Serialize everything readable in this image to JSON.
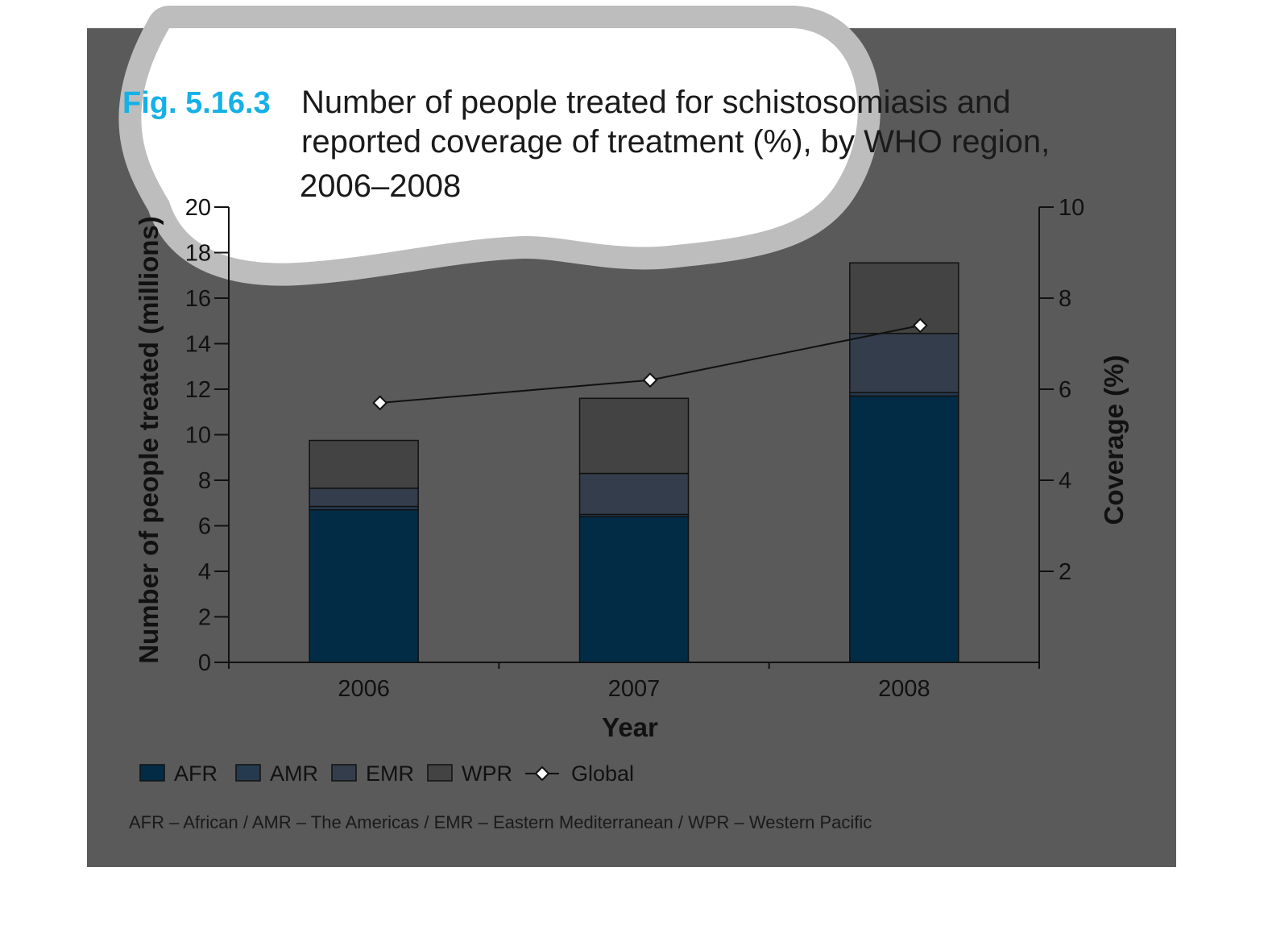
{
  "figure": {
    "label": "Fig. 5.16.3",
    "title_lines": [
      "Number of people treated for schistosomiasis and",
      "reported coverage of treatment (%), by WHO region,",
      "2006–2008"
    ],
    "footnote": "AFR – African / AMR – The Americas / EMR – Eastern Mediterranean / WPR – Western Pacific"
  },
  "colors": {
    "background": "#5a5a5a",
    "cloud": "#ffffff",
    "cloud_ring": "#bdbdbd",
    "afr": "#022c45",
    "amr": "#253a4f",
    "emr": "#333d4b",
    "wpr": "#434343",
    "line": "#111111"
  },
  "chart_data": {
    "type": "bar",
    "stacked": true,
    "categories": [
      "2006",
      "2007",
      "2008"
    ],
    "xlabel": "Year",
    "ylabel": "Number of people treated (millions)",
    "y2label": "Coverage (%)",
    "ylim": [
      0,
      20
    ],
    "yticks": [
      0,
      2,
      4,
      6,
      8,
      10,
      12,
      14,
      16,
      18,
      20
    ],
    "y2lim": [
      0,
      10
    ],
    "y2ticks": [
      2,
      4,
      6,
      8,
      10
    ],
    "series": [
      {
        "name": "AFR",
        "values": [
          6.7,
          6.4,
          11.7
        ]
      },
      {
        "name": "AMR",
        "values": [
          0.15,
          0.1,
          0.15
        ]
      },
      {
        "name": "EMR",
        "values": [
          0.8,
          1.8,
          2.6
        ]
      },
      {
        "name": "WPR",
        "values": [
          2.1,
          3.3,
          3.1
        ]
      }
    ],
    "line_series": {
      "name": "Global",
      "axis": "right",
      "values": [
        5.7,
        6.2,
        7.4
      ]
    },
    "legend": [
      "AFR",
      "AMR",
      "EMR",
      "WPR",
      "Global"
    ],
    "legend_position": "bottom-left"
  }
}
